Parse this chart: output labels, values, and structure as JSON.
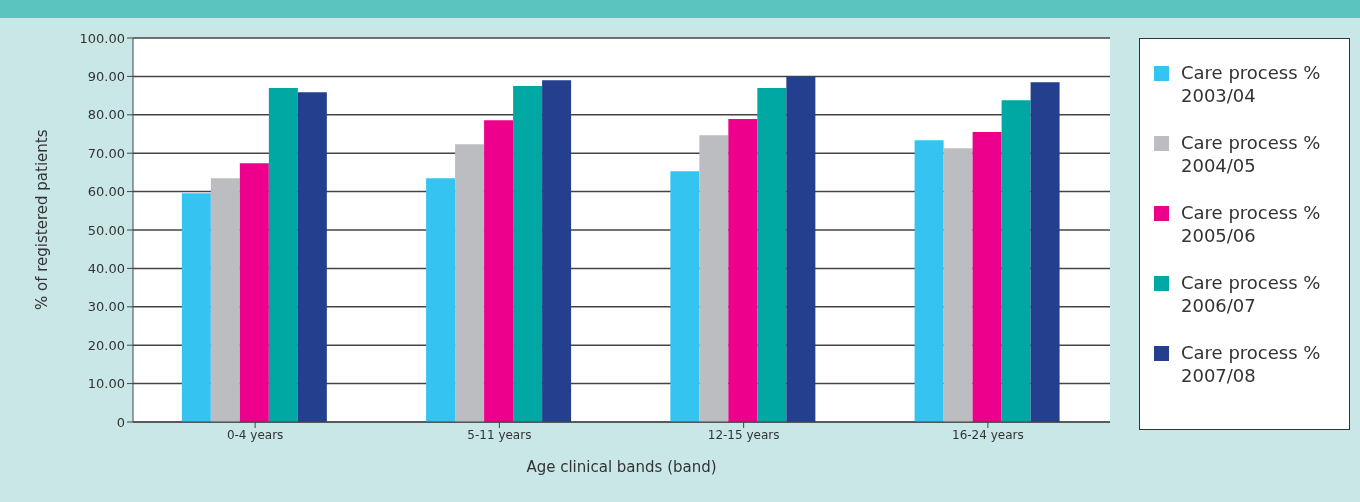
{
  "chart_data": {
    "type": "bar",
    "xlabel": "Age clinical bands (band)",
    "ylabel": "% of registered patients",
    "categories": [
      "0-4 years",
      "5-11 years",
      "12-15 years",
      "16-24 years"
    ],
    "series": [
      {
        "name": "Care process % 2003/04",
        "color": "#35c4f2",
        "values": [
          59.6,
          63.5,
          65.3,
          73.4
        ]
      },
      {
        "name": "Care process % 2004/05",
        "color": "#bcbdc1",
        "values": [
          63.5,
          72.3,
          74.7,
          71.3
        ]
      },
      {
        "name": "Care process % 2005/06",
        "color": "#ec008c",
        "values": [
          67.4,
          78.6,
          78.9,
          75.5
        ]
      },
      {
        "name": "Care process % 2006/07",
        "color": "#00a8a3",
        "values": [
          87.0,
          87.5,
          87.0,
          83.8
        ]
      },
      {
        "name": "Care process % 2007/08",
        "color": "#243f8e",
        "values": [
          85.9,
          89.0,
          90.0,
          88.5
        ]
      }
    ],
    "ylim": [
      0,
      100
    ],
    "yticks": [
      {
        "value": 0,
        "label": "0"
      },
      {
        "value": 10,
        "label": "10.00"
      },
      {
        "value": 20,
        "label": "20.00"
      },
      {
        "value": 30,
        "label": "30.00"
      },
      {
        "value": 40,
        "label": "40.00"
      },
      {
        "value": 50,
        "label": "50.00"
      },
      {
        "value": 60,
        "label": "60.00"
      },
      {
        "value": 70,
        "label": "70.00"
      },
      {
        "value": 80,
        "label": "80.00"
      },
      {
        "value": 90,
        "label": "90.00"
      },
      {
        "value": 100,
        "label": "100.00"
      }
    ],
    "grid": "y",
    "legend": "right"
  }
}
